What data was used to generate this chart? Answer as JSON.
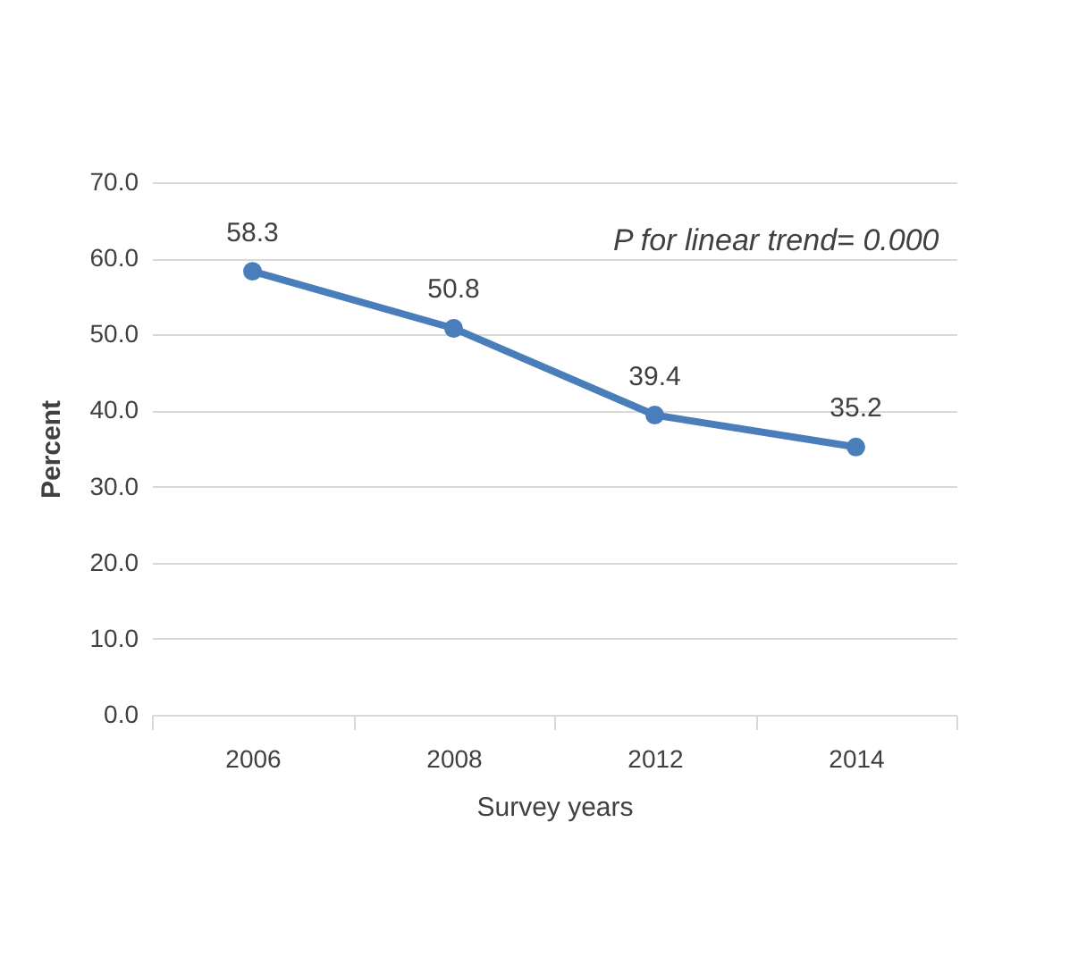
{
  "chart_data": {
    "type": "line",
    "categories": [
      "2006",
      "2008",
      "2012",
      "2014"
    ],
    "series": [
      {
        "color": "#4a7ebb",
        "values": [
          58.3,
          50.8,
          39.4,
          35.2
        ]
      }
    ],
    "xlabel": "Survey years",
    "ylabel": "Percent",
    "ylim": [
      0,
      70
    ],
    "yticks": [
      {
        "value": 0,
        "label": "0.0"
      },
      {
        "value": 10,
        "label": "10.0"
      },
      {
        "value": 20,
        "label": "20.0"
      },
      {
        "value": 30,
        "label": "30.0"
      },
      {
        "value": 40,
        "label": "40.0"
      },
      {
        "value": 50,
        "label": "50.0"
      },
      {
        "value": 60,
        "label": "60.0"
      },
      {
        "value": 70,
        "label": "70.0"
      }
    ],
    "grid": "y",
    "marker": "circle",
    "line_style": "solid",
    "data_labels": true,
    "annotations": [
      "P for linear trend= 0.000"
    ]
  }
}
